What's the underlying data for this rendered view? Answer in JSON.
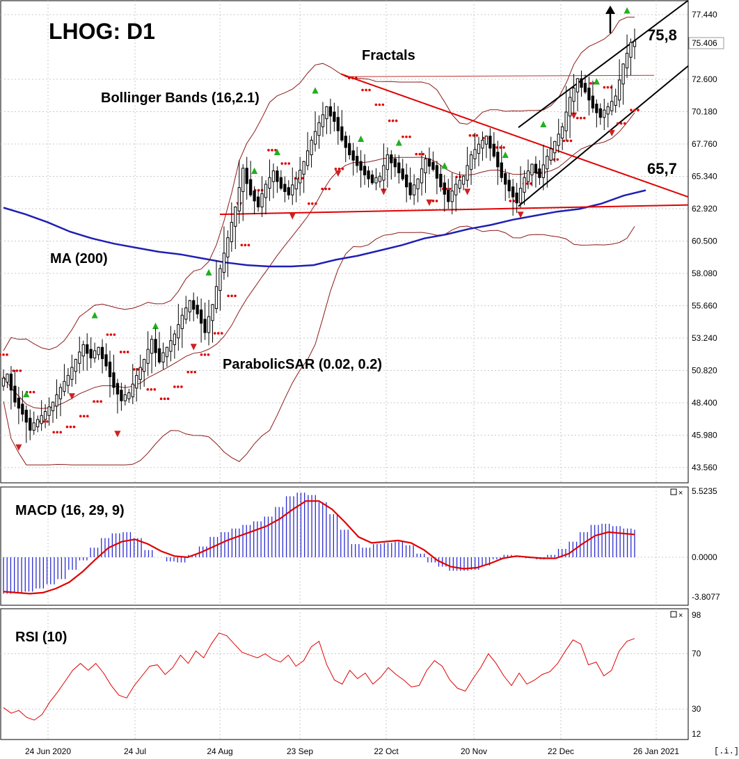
{
  "chart_data": [
    {
      "type": "candlestick",
      "title": "LHOG: D1",
      "panel": "price",
      "ylim": [
        43.56,
        77.44
      ],
      "y_ticks": [
        "77.440",
        "75.406",
        "72.600",
        "70.180",
        "67.760",
        "65.340",
        "62.920",
        "60.500",
        "58.080",
        "55.660",
        "53.240",
        "50.820",
        "48.400",
        "45.980",
        "43.560"
      ],
      "current_price": "75.406",
      "x_ticks": [
        "24 Jun 2020",
        "24 Jul",
        "24 Aug",
        "23 Sep",
        "22 Oct",
        "20 Nov",
        "22 Dec",
        "26 Jan 2021"
      ],
      "annotations": [
        {
          "text": "75,8",
          "value": 75.8
        },
        {
          "text": "65,7",
          "value": 65.7
        },
        {
          "text": "Fractals"
        },
        {
          "text": "Bollinger Bands (16,2.1)"
        },
        {
          "text": "MA (200)"
        },
        {
          "text": "ParabolicSAR (0.02, 0.2)"
        }
      ],
      "series": [
        {
          "name": "Close",
          "values": [
            50.4,
            48.6,
            47.7,
            46.5,
            47.0,
            47.6,
            48.3,
            49.4,
            50.3,
            51.5,
            52.6,
            51.9,
            52.4,
            51.3,
            49.7,
            48.7,
            49.0,
            50.3,
            51.5,
            53.0,
            51.6,
            52.4,
            53.4,
            54.8,
            55.9,
            55.2,
            53.8,
            55.6,
            58.3,
            60.6,
            62.9,
            65.8,
            64.1,
            63.2,
            64.6,
            65.6,
            64.6,
            64.1,
            65.0,
            66.3,
            67.9,
            69.2,
            70.4,
            69.6,
            68.2,
            67.1,
            66.3,
            65.6,
            65.0,
            65.2,
            66.8,
            66.2,
            65.3,
            64.1,
            65.0,
            66.5,
            66.0,
            64.7,
            63.6,
            64.6,
            65.2,
            66.8,
            67.6,
            68.2,
            67.0,
            65.4,
            64.4,
            63.5,
            65.1,
            66.1,
            65.4,
            66.7,
            67.8,
            68.9,
            71.1,
            72.5,
            71.8,
            70.6,
            69.9,
            70.4,
            71.2,
            73.6,
            75.2,
            75.4
          ]
        },
        {
          "name": "MA (200)",
          "values": [
            63.0,
            62.5,
            61.9,
            61.2,
            60.7,
            60.3,
            60.0,
            59.7,
            59.5,
            59.2,
            58.9,
            58.7,
            58.6,
            58.6,
            58.7,
            59.1,
            59.4,
            59.8,
            60.2,
            60.7,
            61.0,
            61.4,
            61.7,
            62.1,
            62.4,
            62.7,
            62.9,
            63.3,
            63.9,
            64.3
          ]
        },
        {
          "name": "Parabolic SAR",
          "values": [
            52.0,
            50.8,
            49.2,
            47.0,
            46.2,
            46.6,
            47.4,
            48.5,
            53.5,
            52.2,
            50.9,
            49.4,
            48.7,
            49.6,
            50.7,
            52.0,
            53.6,
            56.4,
            60.2,
            64.3,
            67.3,
            66.3,
            65.2,
            63.3,
            64.4,
            65.9,
            72.7,
            71.8,
            70.7,
            69.5,
            68.3,
            67.0,
            63.5,
            64.4,
            65.3,
            68.4,
            68.2,
            67.5,
            63.5,
            64.8,
            65.6,
            66.6,
            68.0,
            69.7,
            72.3,
            72.0,
            69.3,
            70.3
          ]
        }
      ]
    },
    {
      "type": "bar+line",
      "title": "MACD (16, 29, 9)",
      "panel": "macd",
      "ylim": [
        -3.8077,
        5.5235
      ],
      "y_ticks": [
        "5.5235",
        "0.0000",
        "-3.8077"
      ],
      "series": [
        {
          "name": "Histogram",
          "values": [
            -3.5,
            -3.4,
            -3.3,
            -3.0,
            -2.6,
            -2.1,
            -1.2,
            -0.3,
            0.8,
            1.6,
            2.0,
            2.1,
            1.6,
            0.6,
            0.0,
            -0.4,
            -0.5,
            0.2,
            0.9,
            1.7,
            2.1,
            2.4,
            2.7,
            3.0,
            3.4,
            4.2,
            5.1,
            5.4,
            5.2,
            4.6,
            3.6,
            2.3,
            1.1,
            0.8,
            1.1,
            1.2,
            1.3,
            1.0,
            0.3,
            -0.5,
            -0.9,
            -1.3,
            -1.3,
            -1.2,
            -0.8,
            -0.2,
            0.2,
            0.1,
            -0.1,
            -0.2,
            0.2,
            0.7,
            1.3,
            2.1,
            2.7,
            2.8,
            2.6,
            2.4,
            2.3
          ]
        },
        {
          "name": "Signal",
          "values": [
            -3.3,
            -3.4,
            -3.5,
            -3.4,
            -3.0,
            -2.4,
            -1.4,
            -0.2,
            0.8,
            1.3,
            1.5,
            1.1,
            0.5,
            0.1,
            0.0,
            0.4,
            0.9,
            1.4,
            1.8,
            2.2,
            2.6,
            3.2,
            4.0,
            4.7,
            4.7,
            4.0,
            2.9,
            1.7,
            1.2,
            1.3,
            1.4,
            1.2,
            0.6,
            -0.3,
            -0.9,
            -1.1,
            -1.0,
            -0.6,
            -0.1,
            0.1,
            0.0,
            -0.1,
            -0.1,
            0.3,
            1.1,
            1.8,
            2.1,
            2.0,
            1.9
          ]
        }
      ]
    },
    {
      "type": "line",
      "title": "RSI (10)",
      "panel": "rsi",
      "ylim": [
        12,
        98
      ],
      "y_ticks": [
        "98",
        "70",
        "30",
        "12"
      ],
      "series": [
        {
          "name": "RSI",
          "values": [
            31,
            27,
            29,
            24,
            22,
            26,
            35,
            42,
            50,
            58,
            63,
            58,
            63,
            56,
            47,
            40,
            38,
            47,
            54,
            61,
            62,
            55,
            60,
            69,
            63,
            72,
            67,
            77,
            85,
            83,
            77,
            71,
            69,
            67,
            70,
            66,
            64,
            69,
            61,
            65,
            75,
            79,
            62,
            51,
            48,
            58,
            52,
            56,
            48,
            53,
            60,
            55,
            51,
            46,
            47,
            58,
            65,
            61,
            51,
            45,
            43,
            52,
            60,
            70,
            63,
            54,
            47,
            56,
            48,
            51,
            55,
            57,
            63,
            72,
            80,
            77,
            62,
            64,
            54,
            58,
            72,
            79,
            81
          ]
        }
      ]
    }
  ]
}
